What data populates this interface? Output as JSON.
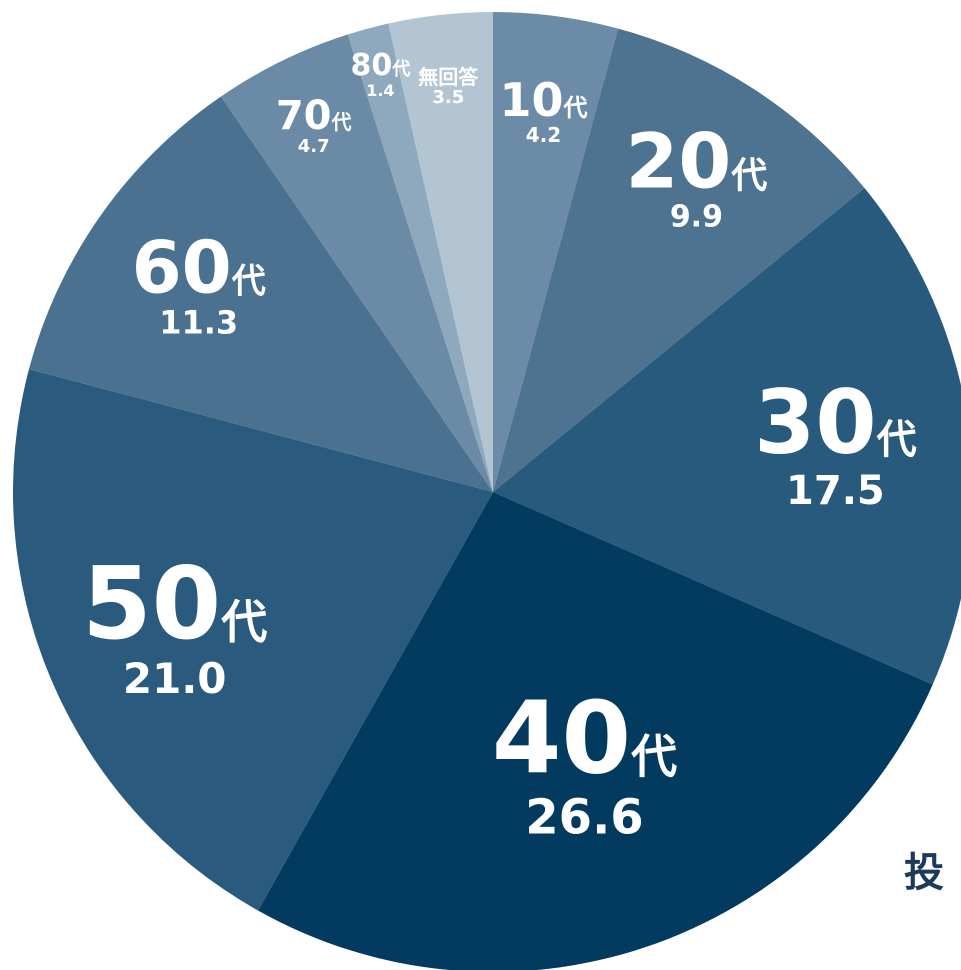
{
  "chart_data": {
    "type": "pie",
    "title": "",
    "unit": "",
    "slices": [
      {
        "label": "10代",
        "num": "10",
        "suffix": "代",
        "value": 4.2,
        "value_text": "4.2",
        "color": "#6b8ba6"
      },
      {
        "label": "20代",
        "num": "20",
        "suffix": "代",
        "value": 9.9,
        "value_text": "9.9",
        "color": "#4d7391"
      },
      {
        "label": "30代",
        "num": "30",
        "suffix": "代",
        "value": 17.5,
        "value_text": "17.5",
        "color": "#285a7e"
      },
      {
        "label": "40代",
        "num": "40",
        "suffix": "代",
        "value": 26.6,
        "value_text": "26.6",
        "color": "#033a60"
      },
      {
        "label": "50代",
        "num": "50",
        "suffix": "代",
        "value": 21.0,
        "value_text": "21.0",
        "color": "#2a5a7e"
      },
      {
        "label": "60代",
        "num": "60",
        "suffix": "代",
        "value": 11.3,
        "value_text": "11.3",
        "color": "#4a7190"
      },
      {
        "label": "70代",
        "num": "70",
        "suffix": "代",
        "value": 4.7,
        "value_text": "4.7",
        "color": "#6b8aa5"
      },
      {
        "label": "80代",
        "num": "80",
        "suffix": "代",
        "value": 1.4,
        "value_text": "1.4",
        "color": "#8ea8bd"
      },
      {
        "label": "無回答",
        "num": "",
        "suffix": "無回答",
        "value": 3.5,
        "value_text": "3.5",
        "color": "#b3c5d3"
      }
    ]
  },
  "footer_text": "投"
}
